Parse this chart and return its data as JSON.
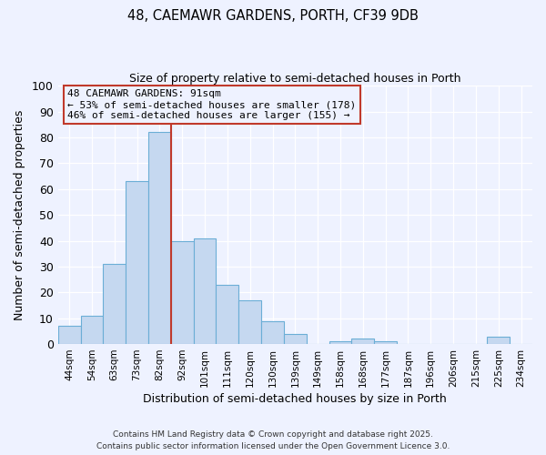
{
  "title1": "48, CAEMAWR GARDENS, PORTH, CF39 9DB",
  "title2": "Size of property relative to semi-detached houses in Porth",
  "xlabel": "Distribution of semi-detached houses by size in Porth",
  "ylabel": "Number of semi-detached properties",
  "categories": [
    "44sqm",
    "54sqm",
    "63sqm",
    "73sqm",
    "82sqm",
    "92sqm",
    "101sqm",
    "111sqm",
    "120sqm",
    "130sqm",
    "139sqm",
    "149sqm",
    "158sqm",
    "168sqm",
    "177sqm",
    "187sqm",
    "196sqm",
    "206sqm",
    "215sqm",
    "225sqm",
    "234sqm"
  ],
  "values": [
    7,
    11,
    31,
    63,
    82,
    40,
    41,
    23,
    17,
    9,
    4,
    0,
    1,
    2,
    1,
    0,
    0,
    0,
    0,
    3,
    0
  ],
  "bar_color": "#c5d8f0",
  "bar_edge_color": "#6baed6",
  "vline_color": "#c0392b",
  "vline_pos": 4.5,
  "annotation_title": "48 CAEMAWR GARDENS: 91sqm",
  "annotation_line1": "← 53% of semi-detached houses are smaller (178)",
  "annotation_line2": "46% of semi-detached houses are larger (155) →",
  "annotation_box_color": "#c0392b",
  "ylim": [
    0,
    100
  ],
  "background_color": "#eef2ff",
  "footer1": "Contains HM Land Registry data © Crown copyright and database right 2025.",
  "footer2": "Contains public sector information licensed under the Open Government Licence 3.0."
}
